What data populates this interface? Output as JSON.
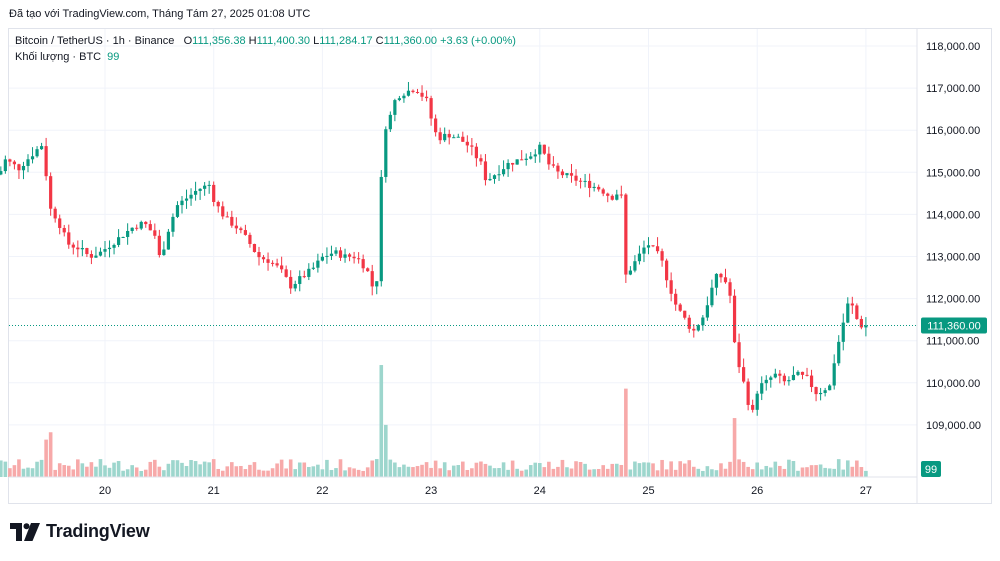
{
  "header": {
    "text": "Đã tạo với TradingView.com, Tháng Tám 27, 2025 01:08 UTC"
  },
  "legend": {
    "symbol": "Bitcoin / TetherUS · 1h · Binance",
    "o_label": "O",
    "o_value": "111,356.38",
    "h_label": "H",
    "h_value": "111,400.30",
    "l_label": "L",
    "l_value": "111,284.17",
    "c_label": "C",
    "c_value": "111,360.00",
    "change": "+3.63 (+0.00%)",
    "volume_label": "Khối lượng · BTC",
    "volume_value": "99"
  },
  "brand": {
    "name": "TradingView"
  },
  "colors": {
    "up": "#089981",
    "down": "#f23645",
    "up_vol": "#9dd6cd",
    "down_vol": "#f7a9a9",
    "grid": "#f0f3fa",
    "text": "#131722"
  },
  "chart_data": {
    "type": "candlestick",
    "interval": "1h",
    "x_tick_labels": [
      "20",
      "21",
      "22",
      "23",
      "24",
      "25",
      "26",
      "27"
    ],
    "y_tick_labels": [
      "109,000.00",
      "110,000.00",
      "111,000.00",
      "112,000.00",
      "113,000.00",
      "114,000.00",
      "115,000.00",
      "116,000.00",
      "117,000.00",
      "118,000.00"
    ],
    "y_range": [
      108000,
      118300
    ],
    "last_price_label": "111,360.00",
    "last_price": 111360,
    "last_volume_label": "99",
    "price_path": [
      [
        19.0,
        115700
      ],
      [
        19.05,
        114800
      ],
      [
        19.12,
        115300
      ],
      [
        19.25,
        115100
      ],
      [
        19.4,
        115500
      ],
      [
        19.48,
        115700
      ],
      [
        19.52,
        114200
      ],
      [
        19.6,
        113900
      ],
      [
        19.7,
        113300
      ],
      [
        19.8,
        113200
      ],
      [
        19.9,
        113000
      ],
      [
        20.0,
        113100
      ],
      [
        20.1,
        113300
      ],
      [
        20.2,
        113500
      ],
      [
        20.3,
        113700
      ],
      [
        20.4,
        113800
      ],
      [
        20.5,
        113500
      ],
      [
        20.55,
        112900
      ],
      [
        20.62,
        113600
      ],
      [
        20.7,
        114200
      ],
      [
        20.8,
        114400
      ],
      [
        20.9,
        114600
      ],
      [
        21.0,
        114700
      ],
      [
        21.05,
        114300
      ],
      [
        21.15,
        113900
      ],
      [
        21.25,
        113700
      ],
      [
        21.35,
        113400
      ],
      [
        21.45,
        113000
      ],
      [
        21.55,
        112900
      ],
      [
        21.65,
        112700
      ],
      [
        21.75,
        112300
      ],
      [
        21.85,
        112500
      ],
      [
        21.95,
        112700
      ],
      [
        22.05,
        113000
      ],
      [
        22.15,
        113100
      ],
      [
        22.25,
        113000
      ],
      [
        22.35,
        113000
      ],
      [
        22.45,
        112700
      ],
      [
        22.5,
        112300
      ],
      [
        22.55,
        112500
      ],
      [
        22.6,
        116000
      ],
      [
        22.65,
        116200
      ],
      [
        22.72,
        116800
      ],
      [
        22.8,
        116900
      ],
      [
        22.9,
        117000
      ],
      [
        23.0,
        116700
      ],
      [
        23.05,
        116200
      ],
      [
        23.1,
        115800
      ],
      [
        23.2,
        115900
      ],
      [
        23.3,
        115800
      ],
      [
        23.4,
        115600
      ],
      [
        23.5,
        115200
      ],
      [
        23.55,
        114800
      ],
      [
        23.65,
        115000
      ],
      [
        23.75,
        115200
      ],
      [
        23.85,
        115300
      ],
      [
        23.95,
        115400
      ],
      [
        24.05,
        115600
      ],
      [
        24.12,
        115200
      ],
      [
        24.2,
        115000
      ],
      [
        24.3,
        114900
      ],
      [
        24.4,
        114800
      ],
      [
        24.5,
        114700
      ],
      [
        24.6,
        114600
      ],
      [
        24.7,
        114400
      ],
      [
        24.75,
        114500
      ],
      [
        24.8,
        114400
      ],
      [
        24.82,
        112500
      ],
      [
        24.9,
        112800
      ],
      [
        25.0,
        113200
      ],
      [
        25.05,
        113300
      ],
      [
        25.1,
        113100
      ],
      [
        25.15,
        113000
      ],
      [
        25.22,
        112400
      ],
      [
        25.3,
        111800
      ],
      [
        25.38,
        111500
      ],
      [
        25.45,
        111200
      ],
      [
        25.55,
        111600
      ],
      [
        25.62,
        112200
      ],
      [
        25.68,
        112600
      ],
      [
        25.75,
        112400
      ],
      [
        25.8,
        112000
      ],
      [
        25.84,
        110700
      ],
      [
        25.9,
        110200
      ],
      [
        25.95,
        109600
      ],
      [
        26.0,
        109300
      ],
      [
        26.05,
        109900
      ],
      [
        26.12,
        110000
      ],
      [
        26.2,
        110200
      ],
      [
        26.3,
        110000
      ],
      [
        26.4,
        110200
      ],
      [
        26.5,
        110100
      ],
      [
        26.6,
        109700
      ],
      [
        26.65,
        109900
      ],
      [
        26.7,
        109800
      ],
      [
        26.75,
        110500
      ],
      [
        26.82,
        111300
      ],
      [
        26.88,
        111900
      ],
      [
        26.92,
        111800
      ],
      [
        26.96,
        111500
      ],
      [
        26.98,
        111400
      ],
      [
        27.0,
        111360
      ]
    ]
  }
}
